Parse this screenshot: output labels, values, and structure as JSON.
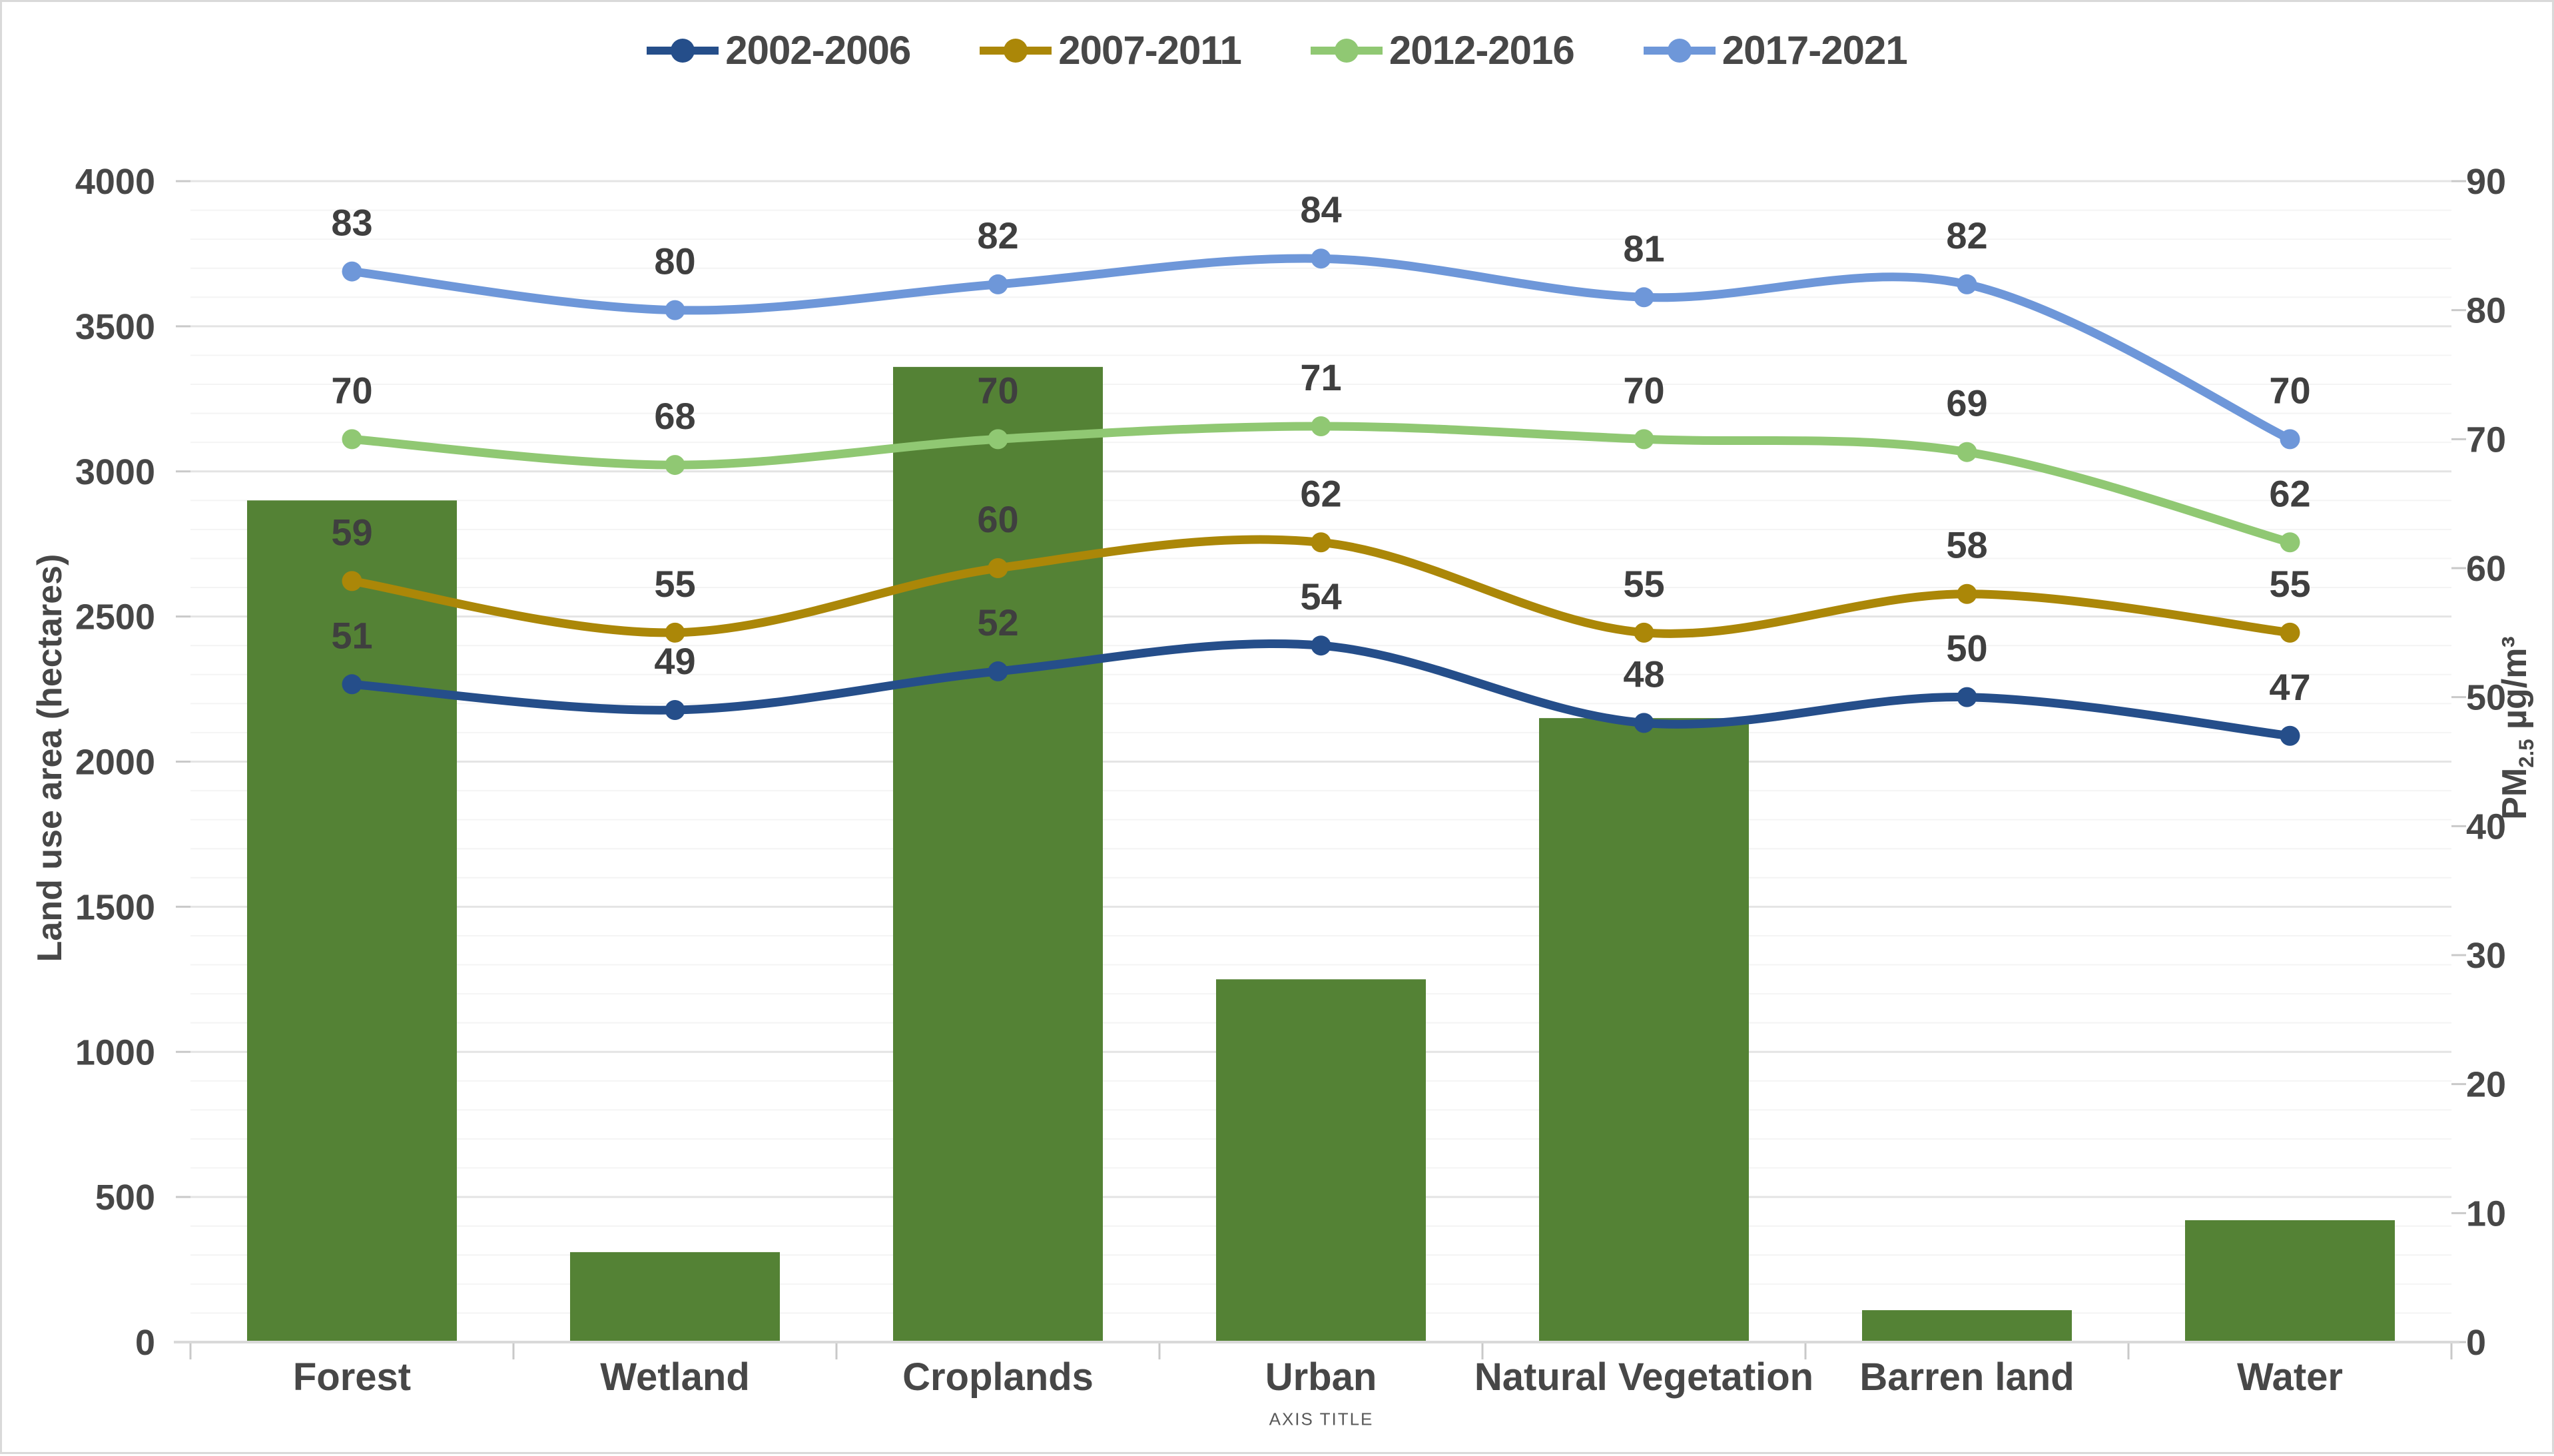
{
  "chart_data": {
    "type": "combo-bar-line",
    "categories": [
      "Forest",
      "Wetland",
      "Croplands",
      "Urban",
      "Natural Vegetation",
      "Barren land",
      "Water"
    ],
    "bar_series": {
      "name": "Land use area",
      "axis": "left",
      "color": "#548235",
      "values": [
        2900,
        310,
        3360,
        1250,
        2150,
        110,
        420
      ]
    },
    "line_series": [
      {
        "name": "2002-2006",
        "color": "#254E8A",
        "axis": "right",
        "values": [
          51,
          49,
          52,
          54,
          48,
          50,
          47
        ]
      },
      {
        "name": "2007-2011",
        "color": "#AB8708",
        "axis": "right",
        "values": [
          59,
          55,
          60,
          62,
          55,
          58,
          55
        ]
      },
      {
        "name": "2012-2016",
        "color": "#90C873",
        "axis": "right",
        "values": [
          70,
          68,
          70,
          71,
          70,
          69,
          62
        ]
      },
      {
        "name": "2017-2021",
        "color": "#6E97D9",
        "axis": "right",
        "values": [
          83,
          80,
          82,
          84,
          81,
          82,
          70
        ]
      }
    ],
    "left_axis": {
      "title": "Land use area (hectares)",
      "min": 0,
      "max": 4000,
      "major": 500,
      "minor": 100,
      "ticks": [
        "0",
        "500",
        "1000",
        "1500",
        "2000",
        "2500",
        "3000",
        "3500",
        "4000"
      ]
    },
    "right_axis": {
      "title_prefix": "PM",
      "title_sub": "2.5",
      "title_suffix": " µg/m³",
      "min": 0,
      "max": 90,
      "major": 10,
      "ticks": [
        "0",
        "10",
        "20",
        "30",
        "40",
        "50",
        "60",
        "70",
        "80",
        "90"
      ]
    },
    "x_axis": {
      "title": "AXIS TITLE"
    },
    "style": {
      "text_color": "#474747",
      "data_label_color": "#3f3f3f",
      "gridline_minor": "#f4f4f4",
      "gridline_major": "#e4e4e4",
      "axis_line": "#d9d9d9",
      "tick_mark": "#c9c9c9",
      "background": "#ffffff"
    },
    "legend_position": "top",
    "grid": "both-major-and-minor-horizontal"
  }
}
